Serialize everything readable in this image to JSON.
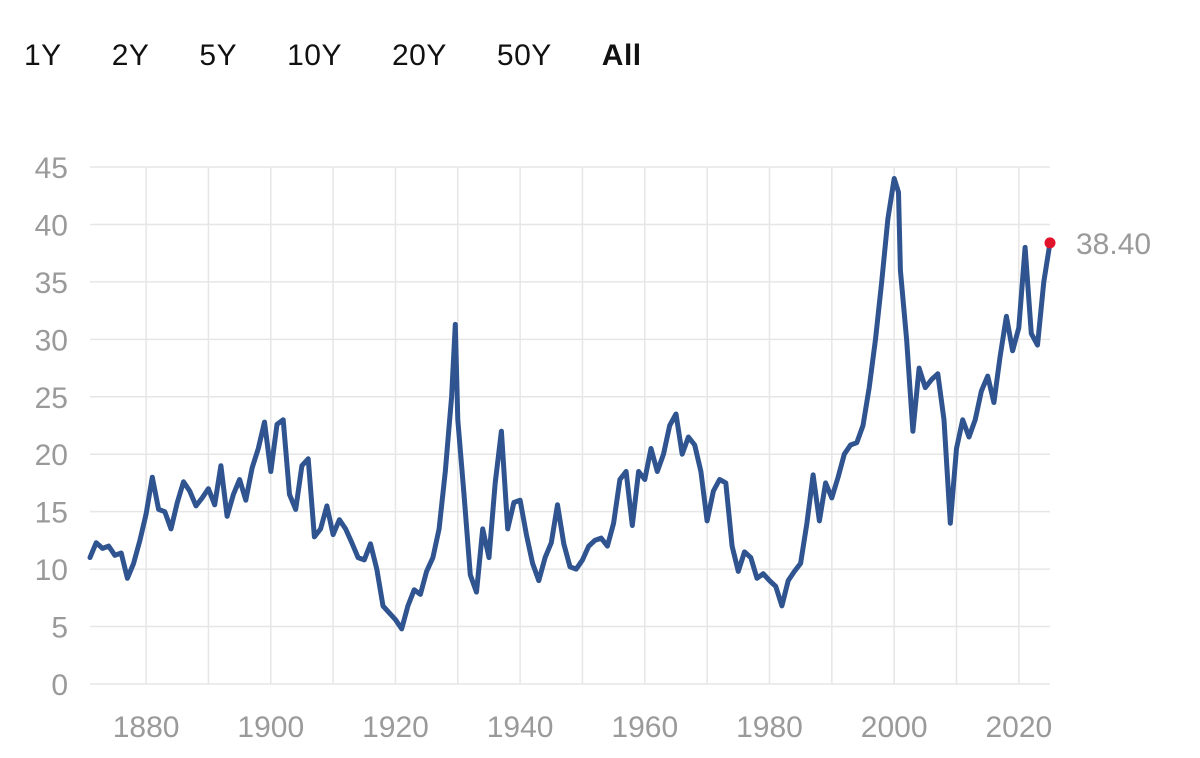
{
  "range_tabs": [
    {
      "label": "1Y",
      "active": false
    },
    {
      "label": "2Y",
      "active": false
    },
    {
      "label": "5Y",
      "active": false
    },
    {
      "label": "10Y",
      "active": false
    },
    {
      "label": "20Y",
      "active": false
    },
    {
      "label": "50Y",
      "active": false
    },
    {
      "label": "All",
      "active": true
    }
  ],
  "colors": {
    "line": "#2f5490",
    "last_point": "#e0132b",
    "grid": "#e6e6e6",
    "tick_text": "#9a9a9a"
  },
  "chart_data": {
    "type": "line",
    "title": "",
    "xlabel": "",
    "ylabel": "",
    "xlim": [
      1871,
      2025
    ],
    "ylim": [
      0,
      45
    ],
    "x_ticks": [
      1880,
      1900,
      1920,
      1940,
      1960,
      1980,
      2000,
      2020
    ],
    "y_ticks": [
      0,
      5,
      10,
      15,
      20,
      25,
      30,
      35,
      40,
      45
    ],
    "grid": true,
    "last_value_label": "38.40",
    "series": [
      {
        "points": [
          [
            1871,
            11.0
          ],
          [
            1872,
            12.3
          ],
          [
            1873,
            11.8
          ],
          [
            1874,
            12.0
          ],
          [
            1875,
            11.2
          ],
          [
            1876,
            11.4
          ],
          [
            1877,
            9.2
          ],
          [
            1878,
            10.5
          ],
          [
            1879,
            12.5
          ],
          [
            1880,
            14.8
          ],
          [
            1881,
            18.0
          ],
          [
            1882,
            15.2
          ],
          [
            1883,
            15.0
          ],
          [
            1884,
            13.5
          ],
          [
            1885,
            15.8
          ],
          [
            1886,
            17.6
          ],
          [
            1887,
            16.8
          ],
          [
            1888,
            15.5
          ],
          [
            1889,
            16.2
          ],
          [
            1890,
            17.0
          ],
          [
            1891,
            15.6
          ],
          [
            1892,
            19.0
          ],
          [
            1893,
            14.6
          ],
          [
            1894,
            16.5
          ],
          [
            1895,
            17.8
          ],
          [
            1896,
            16.0
          ],
          [
            1897,
            18.8
          ],
          [
            1898,
            20.5
          ],
          [
            1899,
            22.8
          ],
          [
            1900,
            18.5
          ],
          [
            1901,
            22.6
          ],
          [
            1902,
            23.0
          ],
          [
            1903,
            16.5
          ],
          [
            1904,
            15.2
          ],
          [
            1905,
            19.0
          ],
          [
            1906,
            19.6
          ],
          [
            1907,
            12.8
          ],
          [
            1908,
            13.5
          ],
          [
            1909,
            15.5
          ],
          [
            1910,
            13.0
          ],
          [
            1911,
            14.3
          ],
          [
            1912,
            13.5
          ],
          [
            1913,
            12.3
          ],
          [
            1914,
            11.0
          ],
          [
            1915,
            10.8
          ],
          [
            1916,
            12.2
          ],
          [
            1917,
            10.0
          ],
          [
            1918,
            6.8
          ],
          [
            1919,
            6.2
          ],
          [
            1920,
            5.6
          ],
          [
            1921,
            4.8
          ],
          [
            1922,
            6.8
          ],
          [
            1923,
            8.2
          ],
          [
            1924,
            7.8
          ],
          [
            1925,
            9.8
          ],
          [
            1926,
            11.0
          ],
          [
            1927,
            13.5
          ],
          [
            1928,
            18.5
          ],
          [
            1929,
            25.0
          ],
          [
            1929.6,
            31.3
          ],
          [
            1930,
            23.0
          ],
          [
            1931,
            16.5
          ],
          [
            1932,
            9.5
          ],
          [
            1933,
            8.0
          ],
          [
            1934,
            13.5
          ],
          [
            1935,
            11.0
          ],
          [
            1936,
            17.5
          ],
          [
            1937,
            22.0
          ],
          [
            1938,
            13.5
          ],
          [
            1939,
            15.8
          ],
          [
            1940,
            16.0
          ],
          [
            1941,
            13.0
          ],
          [
            1942,
            10.5
          ],
          [
            1943,
            9.0
          ],
          [
            1944,
            11.0
          ],
          [
            1945,
            12.3
          ],
          [
            1946,
            15.6
          ],
          [
            1947,
            12.2
          ],
          [
            1948,
            10.2
          ],
          [
            1949,
            10.0
          ],
          [
            1950,
            10.8
          ],
          [
            1951,
            12.0
          ],
          [
            1952,
            12.5
          ],
          [
            1953,
            12.7
          ],
          [
            1954,
            12.0
          ],
          [
            1955,
            14.0
          ],
          [
            1956,
            17.8
          ],
          [
            1957,
            18.5
          ],
          [
            1958,
            13.8
          ],
          [
            1959,
            18.5
          ],
          [
            1960,
            17.8
          ],
          [
            1961,
            20.5
          ],
          [
            1962,
            18.5
          ],
          [
            1963,
            20.0
          ],
          [
            1964,
            22.5
          ],
          [
            1965,
            23.5
          ],
          [
            1966,
            20.0
          ],
          [
            1967,
            21.5
          ],
          [
            1968,
            20.8
          ],
          [
            1969,
            18.5
          ],
          [
            1970,
            14.2
          ],
          [
            1971,
            16.8
          ],
          [
            1972,
            17.8
          ],
          [
            1973,
            17.5
          ],
          [
            1974,
            12.0
          ],
          [
            1975,
            9.8
          ],
          [
            1976,
            11.5
          ],
          [
            1977,
            11.0
          ],
          [
            1978,
            9.2
          ],
          [
            1979,
            9.6
          ],
          [
            1980,
            9.0
          ],
          [
            1981,
            8.5
          ],
          [
            1982,
            6.8
          ],
          [
            1983,
            9.0
          ],
          [
            1984,
            9.8
          ],
          [
            1985,
            10.5
          ],
          [
            1986,
            14.0
          ],
          [
            1987,
            18.2
          ],
          [
            1988,
            14.2
          ],
          [
            1989,
            17.5
          ],
          [
            1990,
            16.2
          ],
          [
            1991,
            18.0
          ],
          [
            1992,
            20.0
          ],
          [
            1993,
            20.8
          ],
          [
            1994,
            21.0
          ],
          [
            1995,
            22.5
          ],
          [
            1996,
            25.8
          ],
          [
            1997,
            30.0
          ],
          [
            1998,
            35.0
          ],
          [
            1999,
            40.5
          ],
          [
            2000,
            44.0
          ],
          [
            2000.7,
            42.8
          ],
          [
            2001,
            36.0
          ],
          [
            2002,
            30.0
          ],
          [
            2003,
            22.0
          ],
          [
            2004,
            27.5
          ],
          [
            2005,
            25.8
          ],
          [
            2006,
            26.5
          ],
          [
            2007,
            27.0
          ],
          [
            2008,
            23.0
          ],
          [
            2009,
            14.0
          ],
          [
            2010,
            20.5
          ],
          [
            2011,
            23.0
          ],
          [
            2012,
            21.5
          ],
          [
            2013,
            23.0
          ],
          [
            2014,
            25.5
          ],
          [
            2015,
            26.8
          ],
          [
            2016,
            24.5
          ],
          [
            2017,
            28.5
          ],
          [
            2018,
            32.0
          ],
          [
            2019,
            29.0
          ],
          [
            2020,
            31.0
          ],
          [
            2021,
            38.0
          ],
          [
            2022,
            30.5
          ],
          [
            2023,
            29.5
          ],
          [
            2024,
            35.0
          ],
          [
            2025,
            38.4
          ]
        ]
      }
    ]
  }
}
